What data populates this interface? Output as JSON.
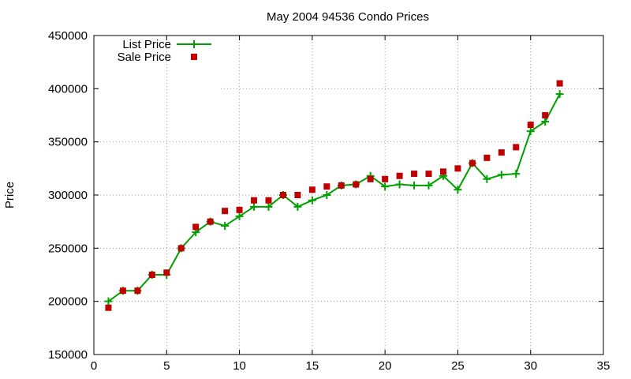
{
  "chart_data": {
    "type": "line",
    "title": "May 2004 94536 Condo Prices",
    "xlabel": "",
    "ylabel": "Price",
    "xlim": [
      0,
      35
    ],
    "ylim": [
      150000,
      450000
    ],
    "x_ticks": [
      0,
      5,
      10,
      15,
      20,
      25,
      30,
      35
    ],
    "y_ticks": [
      150000,
      200000,
      250000,
      300000,
      350000,
      400000,
      450000
    ],
    "grid": true,
    "legend_position": "top-left",
    "series": [
      {
        "name": "List Price",
        "style": "line-plus",
        "color": "#00a000",
        "x": [
          1,
          2,
          3,
          4,
          5,
          6,
          7,
          8,
          9,
          10,
          11,
          12,
          13,
          14,
          15,
          16,
          17,
          18,
          19,
          20,
          21,
          22,
          23,
          24,
          25,
          26,
          27,
          28,
          29,
          30,
          31,
          32
        ],
        "y": [
          200000,
          210000,
          210000,
          225000,
          225000,
          250000,
          265000,
          275000,
          271000,
          280000,
          289000,
          289000,
          300000,
          289000,
          295000,
          300000,
          309000,
          310000,
          318000,
          308000,
          310000,
          309000,
          309000,
          318000,
          305000,
          330000,
          315000,
          319000,
          320000,
          360000,
          369000,
          395000
        ]
      },
      {
        "name": "Sale Price",
        "style": "square",
        "color": "#c00000",
        "x": [
          1,
          2,
          3,
          4,
          5,
          6,
          7,
          8,
          9,
          10,
          11,
          12,
          13,
          14,
          15,
          16,
          17,
          18,
          19,
          20,
          21,
          22,
          23,
          24,
          25,
          26,
          27,
          28,
          29,
          30,
          31,
          32
        ],
        "y": [
          194000,
          210000,
          210000,
          225000,
          227000,
          250000,
          270000,
          275000,
          285000,
          286000,
          295000,
          295000,
          300000,
          300000,
          305000,
          308000,
          309000,
          310000,
          315000,
          315000,
          318000,
          320000,
          320000,
          322000,
          325000,
          330000,
          335000,
          340000,
          345000,
          366000,
          375000,
          405000
        ]
      }
    ]
  }
}
